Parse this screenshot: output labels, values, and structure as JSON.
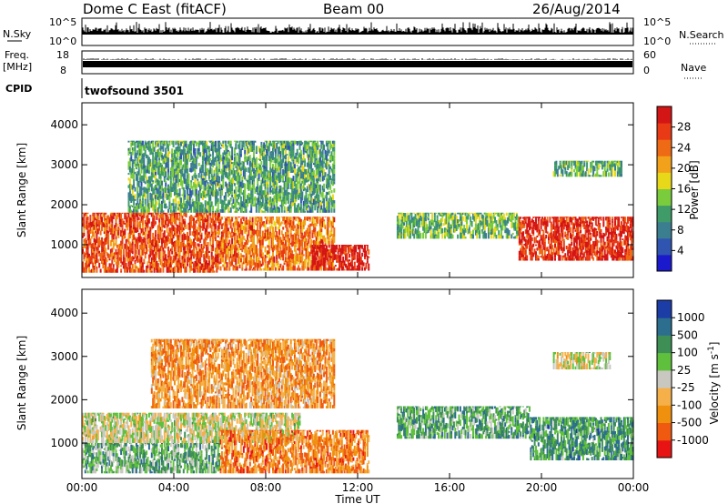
{
  "header": {
    "site": "Dome C East (fitACF)",
    "beam": "Beam 00",
    "date": "26/Aug/2014"
  },
  "top_panels": {
    "nsky_label": "N.Sky",
    "nsky_ticks": [
      "10^5",
      "10^0"
    ],
    "nsearch_label": "N.Search",
    "nsearch_ticks": [
      "10^5",
      "10^0"
    ],
    "freq_label_line1": "Freq.",
    "freq_label_line2": "[MHz]",
    "freq_ticks": [
      "18",
      "8"
    ],
    "nave_label": "Nave",
    "nave_ticks": [
      "60",
      "0"
    ],
    "cpid_label": "CPID",
    "cpid_value": "twofsound 3501"
  },
  "chart_data": [
    {
      "type": "heatmap",
      "title": "",
      "xlabel": "",
      "ylabel": "Slant Range [km]",
      "x_ticks": [
        "00:00",
        "04:00",
        "08:00",
        "12:00",
        "16:00",
        "20:00",
        "00:00"
      ],
      "xlim_hours": [
        0,
        24
      ],
      "y_ticks": [
        1000,
        2000,
        3000,
        4000
      ],
      "ylim": [
        180,
        4550
      ],
      "colorbar": {
        "label": "Power [dB]",
        "ticks": [
          "28",
          "24",
          "20",
          "16",
          "12",
          "8",
          "4"
        ],
        "range": [
          0,
          32
        ]
      },
      "colors": [
        "#1a1acc",
        "#2f55b0",
        "#3b7e8f",
        "#3f9c68",
        "#7acc3c",
        "#e8d81a",
        "#f2a21a",
        "#ef6a14",
        "#e83a14",
        "#d41515"
      ],
      "echo_regions": [
        {
          "t0": 0.0,
          "t1": 6.0,
          "r0": 300,
          "r1": 1800,
          "level": 0.82
        },
        {
          "t0": 6.0,
          "t1": 11.0,
          "r0": 350,
          "r1": 1700,
          "level": 0.75
        },
        {
          "t0": 10.0,
          "t1": 12.5,
          "r0": 350,
          "r1": 1000,
          "level": 0.95
        },
        {
          "t0": 2.0,
          "t1": 11.0,
          "r0": 1800,
          "r1": 3600,
          "level": 0.35
        },
        {
          "t0": 13.7,
          "t1": 19.0,
          "r0": 1150,
          "r1": 1800,
          "level": 0.42
        },
        {
          "t0": 19.0,
          "t1": 24.0,
          "r0": 600,
          "r1": 1700,
          "level": 0.9
        },
        {
          "t0": 20.5,
          "t1": 23.5,
          "r0": 2700,
          "r1": 3100,
          "level": 0.4
        }
      ]
    },
    {
      "type": "heatmap",
      "title": "",
      "xlabel": "Time UT",
      "ylabel": "Slant Range [km]",
      "x_ticks": [
        "00:00",
        "04:00",
        "08:00",
        "12:00",
        "16:00",
        "20:00",
        "00:00"
      ],
      "xlim_hours": [
        0,
        24
      ],
      "y_ticks": [
        1000,
        2000,
        3000,
        4000
      ],
      "ylim": [
        180,
        4550
      ],
      "colorbar": {
        "label": "Velocity [m s^-1]",
        "ticks": [
          "1000",
          "500",
          "100",
          "25",
          "-25",
          "-100",
          "-500",
          "-1000"
        ],
        "range": [
          -1200,
          1200
        ]
      },
      "colors": [
        "#e81414",
        "#ef5a10",
        "#f0900f",
        "#f5b04a",
        "#c8c8c0",
        "#5ec03c",
        "#3e8f56",
        "#2c6e8e",
        "#1d3da6"
      ],
      "echo_regions": [
        {
          "t0": 0.0,
          "t1": 6.0,
          "r0": 300,
          "r1": 1000,
          "level": 0.65
        },
        {
          "t0": 0.0,
          "t1": 9.5,
          "r0": 1000,
          "r1": 1700,
          "level": 0.5
        },
        {
          "t0": 6.0,
          "t1": 12.5,
          "r0": 300,
          "r1": 1300,
          "level": 0.25
        },
        {
          "t0": 3.0,
          "t1": 11.0,
          "r0": 1800,
          "r1": 3400,
          "level": 0.3
        },
        {
          "t0": 13.7,
          "t1": 19.5,
          "r0": 1100,
          "r1": 1850,
          "level": 0.68
        },
        {
          "t0": 19.5,
          "t1": 24.0,
          "r0": 600,
          "r1": 1600,
          "level": 0.72
        },
        {
          "t0": 20.5,
          "t1": 23.0,
          "r0": 2700,
          "r1": 3100,
          "level": 0.5
        }
      ]
    }
  ]
}
